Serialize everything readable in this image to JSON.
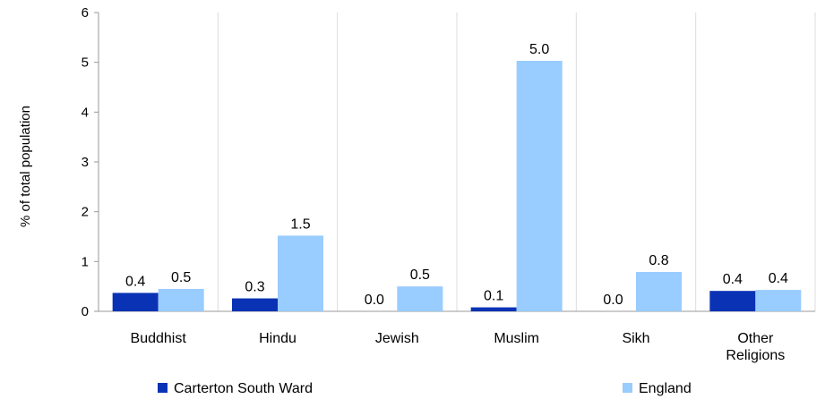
{
  "chart_data": {
    "type": "bar",
    "title": "",
    "xlabel": "",
    "ylabel": "% of total population",
    "ylim": [
      0,
      6
    ],
    "yticks": [
      0,
      1,
      2,
      3,
      4,
      5,
      6
    ],
    "categories": [
      [
        "Buddhist"
      ],
      [
        "Hindu"
      ],
      [
        "Jewish"
      ],
      [
        "Muslim"
      ],
      [
        "Sikh"
      ],
      [
        "Other",
        "Religions"
      ]
    ],
    "series": [
      {
        "name": "Carterton South Ward",
        "color": "#0a32b4",
        "values": [
          0.37,
          0.26,
          0.0,
          0.08,
          0.0,
          0.41
        ],
        "labels": [
          "0.4",
          "0.3",
          "0.0",
          "0.1",
          "0.0",
          "0.4"
        ]
      },
      {
        "name": "England",
        "color": "#99ccff",
        "values": [
          0.45,
          1.52,
          0.5,
          5.03,
          0.79,
          0.43
        ],
        "labels": [
          "0.5",
          "1.5",
          "0.5",
          "5.0",
          "0.8",
          "0.4"
        ]
      }
    ],
    "grid": true,
    "legend_position": "bottom"
  }
}
